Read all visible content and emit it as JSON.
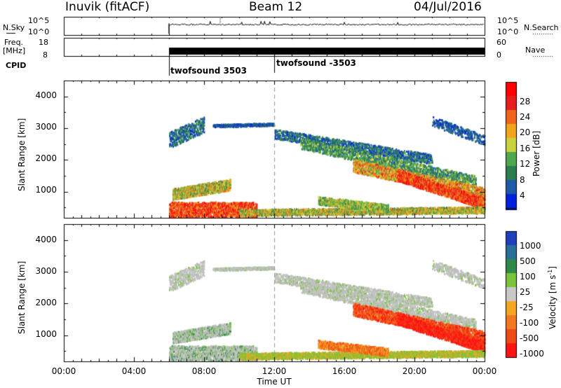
{
  "header": {
    "station": "Inuvik (fitACF)",
    "beam": "Beam 12",
    "date": "04/Jul/2016"
  },
  "summary_labels": {
    "nsky": "N.Sky",
    "nsky_ticks": [
      "10^5",
      "10^0"
    ],
    "nsearch": "N.Search",
    "nsearch_ticks": [
      "10^5",
      "10^0"
    ],
    "freq_line1": "Freq.",
    "freq_line2": "[MHz]",
    "freq_ticks": [
      "18",
      "8"
    ],
    "nave": "Nave",
    "nave_ticks": [
      "60",
      "0"
    ],
    "cpid": "CPID",
    "cpid_modes": [
      "twofsound 3503",
      "twofsound -3503"
    ]
  },
  "colors": {
    "power_scale": [
      "#0022dd",
      "#1e5aa8",
      "#2e7d4f",
      "#4fa84f",
      "#c8d23c",
      "#f0a51e",
      "#f0641e",
      "#e61e1e",
      "#ff0000"
    ],
    "velocity_scale": [
      "#1f3fbf",
      "#2a6e9a",
      "#2f8a4a",
      "#79c43a",
      "#c8c8c8",
      "#f5a623",
      "#f07820",
      "#ee4b16",
      "#ff1414"
    ],
    "ground_scatter": "#c0c0c0"
  },
  "chart_data": [
    {
      "type": "heatmap",
      "name": "power",
      "ylabel": "Slant Range [km]",
      "xlabel": "Time UT",
      "x_ticks": [
        "00:00",
        "04:00",
        "08:00",
        "12:00",
        "16:00",
        "20:00",
        "00:00"
      ],
      "y_ticks": [
        1000,
        2000,
        3000,
        4000
      ],
      "ylim": [
        180,
        4500
      ],
      "xlim_hours": [
        0,
        24
      ],
      "colorbar": {
        "label": "Power [dB]",
        "ticks": [
          4,
          8,
          12,
          16,
          20,
          24,
          28
        ],
        "range": [
          0,
          30
        ]
      },
      "data_start_hour": 6.0,
      "mode_change_hour": 12.0
    },
    {
      "type": "heatmap",
      "name": "velocity",
      "ylabel": "Slant Range [km]",
      "xlabel": "Time UT",
      "x_ticks": [
        "00:00",
        "04:00",
        "08:00",
        "12:00",
        "16:00",
        "20:00",
        "00:00"
      ],
      "y_ticks": [
        1000,
        2000,
        3000,
        4000
      ],
      "ylim": [
        180,
        4500
      ],
      "xlim_hours": [
        0,
        24
      ],
      "colorbar": {
        "label": "Velocity [m s^-1]",
        "ticks": [
          "1000",
          "500",
          "100",
          "25",
          "-25",
          "-100",
          "-500",
          "-1000"
        ]
      }
    }
  ]
}
